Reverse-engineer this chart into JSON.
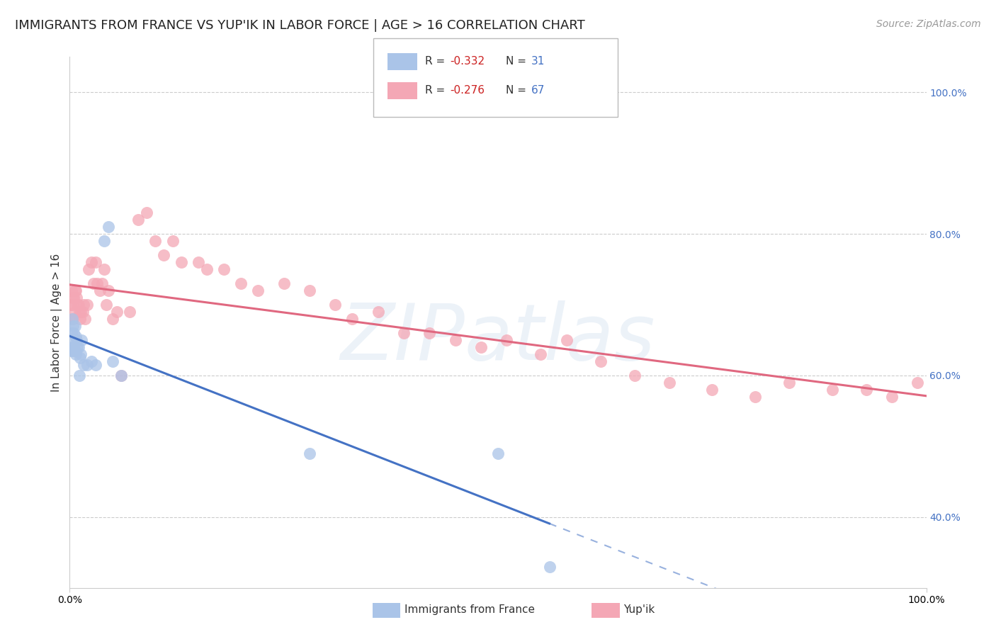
{
  "title": "IMMIGRANTS FROM FRANCE VS YUP'IK IN LABOR FORCE | AGE > 16 CORRELATION CHART",
  "source_text": "Source: ZipAtlas.com",
  "ylabel": "In Labor Force | Age > 16",
  "xlim": [
    0.0,
    1.0
  ],
  "ylim": [
    0.3,
    1.05
  ],
  "x_tick_labels": [
    "0.0%",
    "100.0%"
  ],
  "y_tick_labels": [
    "40.0%",
    "60.0%",
    "80.0%",
    "100.0%"
  ],
  "y_tick_positions": [
    0.4,
    0.6,
    0.8,
    1.0
  ],
  "grid_color": "#cccccc",
  "background_color": "#ffffff",
  "france_color": "#aac4e8",
  "yupik_color": "#f4a7b5",
  "france_line_color": "#4472c4",
  "yupik_line_color": "#e06880",
  "france_x": [
    0.001,
    0.002,
    0.002,
    0.003,
    0.003,
    0.004,
    0.004,
    0.005,
    0.005,
    0.006,
    0.006,
    0.007,
    0.007,
    0.008,
    0.009,
    0.01,
    0.011,
    0.012,
    0.013,
    0.014,
    0.016,
    0.02,
    0.025,
    0.03,
    0.04,
    0.045,
    0.05,
    0.06,
    0.28,
    0.5,
    0.56
  ],
  "france_y": [
    0.635,
    0.66,
    0.64,
    0.68,
    0.65,
    0.67,
    0.635,
    0.66,
    0.64,
    0.67,
    0.635,
    0.655,
    0.63,
    0.65,
    0.64,
    0.64,
    0.6,
    0.625,
    0.63,
    0.65,
    0.615,
    0.615,
    0.62,
    0.615,
    0.79,
    0.81,
    0.62,
    0.6,
    0.49,
    0.49,
    0.33
  ],
  "yupik_x": [
    0.001,
    0.002,
    0.003,
    0.003,
    0.004,
    0.004,
    0.005,
    0.006,
    0.006,
    0.007,
    0.008,
    0.009,
    0.01,
    0.011,
    0.012,
    0.013,
    0.015,
    0.016,
    0.018,
    0.02,
    0.022,
    0.025,
    0.028,
    0.03,
    0.032,
    0.035,
    0.038,
    0.04,
    0.043,
    0.045,
    0.05,
    0.055,
    0.06,
    0.07,
    0.08,
    0.09,
    0.1,
    0.11,
    0.12,
    0.13,
    0.15,
    0.16,
    0.18,
    0.2,
    0.22,
    0.25,
    0.28,
    0.31,
    0.33,
    0.36,
    0.39,
    0.42,
    0.45,
    0.48,
    0.51,
    0.55,
    0.58,
    0.62,
    0.66,
    0.7,
    0.75,
    0.8,
    0.84,
    0.89,
    0.93,
    0.96,
    0.99
  ],
  "yupik_y": [
    0.7,
    0.72,
    0.7,
    0.68,
    0.71,
    0.68,
    0.71,
    0.72,
    0.69,
    0.72,
    0.71,
    0.7,
    0.7,
    0.69,
    0.68,
    0.69,
    0.69,
    0.7,
    0.68,
    0.7,
    0.75,
    0.76,
    0.73,
    0.76,
    0.73,
    0.72,
    0.73,
    0.75,
    0.7,
    0.72,
    0.68,
    0.69,
    0.6,
    0.69,
    0.82,
    0.83,
    0.79,
    0.77,
    0.79,
    0.76,
    0.76,
    0.75,
    0.75,
    0.73,
    0.72,
    0.73,
    0.72,
    0.7,
    0.68,
    0.69,
    0.66,
    0.66,
    0.65,
    0.64,
    0.65,
    0.63,
    0.65,
    0.62,
    0.6,
    0.59,
    0.58,
    0.57,
    0.59,
    0.58,
    0.58,
    0.57,
    0.59
  ],
  "watermark_text": "ZIPatlas",
  "watermark_alpha": 0.12,
  "watermark_color": "#6699cc",
  "watermark_fontsize": 80,
  "title_fontsize": 13,
  "axis_label_fontsize": 11,
  "tick_fontsize": 10,
  "legend_fontsize": 11,
  "source_fontsize": 10
}
